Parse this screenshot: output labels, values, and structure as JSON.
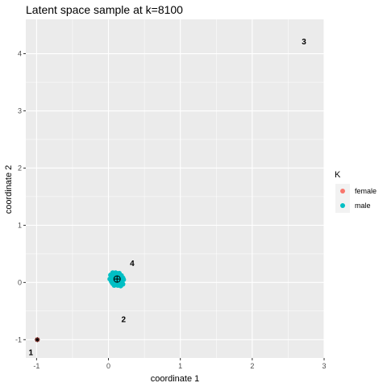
{
  "chart_data": {
    "type": "scatter",
    "title": "Latent space sample at k=8100",
    "xlabel": "coordinate 1",
    "ylabel": "coordinate 2",
    "xlim": [
      -1.15,
      3.0
    ],
    "ylim": [
      -1.32,
      4.6
    ],
    "x_ticks": [
      -1,
      0,
      1,
      2,
      3
    ],
    "y_ticks": [
      -1,
      0,
      1,
      2,
      3,
      4
    ],
    "x_tick_labels": [
      "-1",
      "0",
      "1",
      "2",
      "3"
    ],
    "y_tick_labels": [
      "-1",
      "0",
      "1",
      "2",
      "3",
      "4"
    ],
    "grid": true,
    "background": "#ebebeb",
    "legend": {
      "title": "K",
      "position": "right",
      "entries": [
        {
          "label": "female",
          "color": "#f8766d"
        },
        {
          "label": "male",
          "color": "#00bfc4"
        }
      ]
    },
    "series": [
      {
        "name": "male",
        "color": "#00bfc4",
        "points": [
          [
            0.06,
            0.17
          ],
          [
            0.1,
            0.17
          ],
          [
            0.15,
            0.16
          ],
          [
            0.03,
            0.13
          ],
          [
            0.08,
            0.13
          ],
          [
            0.13,
            0.13
          ],
          [
            0.18,
            0.12
          ],
          [
            0.05,
            0.09
          ],
          [
            0.1,
            0.09
          ],
          [
            0.15,
            0.09
          ],
          [
            0.2,
            0.08
          ],
          [
            0.02,
            0.06
          ],
          [
            0.07,
            0.06
          ],
          [
            0.12,
            0.06
          ],
          [
            0.17,
            0.06
          ],
          [
            0.21,
            0.05
          ],
          [
            0.04,
            0.02
          ],
          [
            0.09,
            0.02
          ],
          [
            0.14,
            0.02
          ],
          [
            0.19,
            0.02
          ],
          [
            0.06,
            -0.02
          ],
          [
            0.11,
            -0.02
          ],
          [
            0.16,
            -0.02
          ],
          [
            0.2,
            -0.03
          ],
          [
            0.08,
            -0.05
          ],
          [
            0.13,
            -0.05
          ],
          [
            0.17,
            -0.06
          ],
          [
            0.05,
            0.0
          ]
        ]
      },
      {
        "name": "female",
        "color": "#f8766d",
        "points": [
          [
            -0.99,
            -1.0
          ]
        ]
      }
    ],
    "markers": [
      {
        "name": "center-marker",
        "x": 0.12,
        "y": 0.06,
        "symbol": "circle-plus"
      },
      {
        "name": "female-marker",
        "x": -0.99,
        "y": -1.0,
        "symbol": "asterisk"
      }
    ],
    "annotations": [
      {
        "text": "1",
        "x": -1.08,
        "y": -1.27
      },
      {
        "text": "2",
        "x": 0.21,
        "y": -0.69
      },
      {
        "text": "3",
        "x": 2.72,
        "y": 4.16
      },
      {
        "text": "4",
        "x": 0.33,
        "y": 0.29
      }
    ]
  }
}
